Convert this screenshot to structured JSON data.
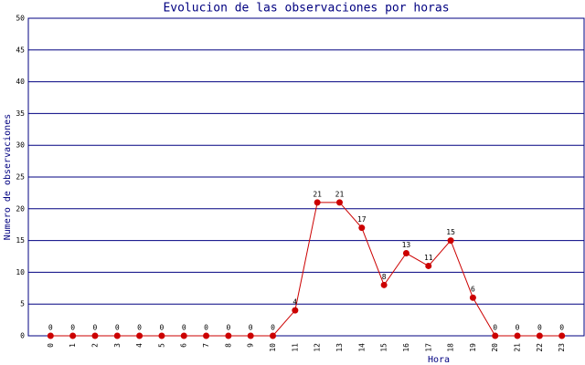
{
  "chart_data": {
    "type": "line",
    "title": "Evolucion de las observaciones por horas",
    "x_label": "Hora",
    "y_label": "Numero de observaciones",
    "categories": [
      "0",
      "1",
      "2",
      "3",
      "4",
      "5",
      "6",
      "7",
      "8",
      "9",
      "10",
      "11",
      "12",
      "13",
      "14",
      "15",
      "16",
      "17",
      "18",
      "19",
      "20",
      "21",
      "22",
      "23"
    ],
    "series": [
      {
        "name": "observaciones",
        "color": "#cc0000",
        "values": [
          0,
          0,
          0,
          0,
          0,
          0,
          0,
          0,
          0,
          0,
          0,
          4,
          21,
          21,
          17,
          8,
          13,
          11,
          15,
          6,
          0,
          0,
          0,
          0
        ]
      }
    ],
    "ylim": [
      0,
      50
    ],
    "yticks": [
      0,
      5,
      10,
      15,
      20,
      25,
      30,
      35,
      40,
      45,
      50
    ],
    "grid": true
  }
}
